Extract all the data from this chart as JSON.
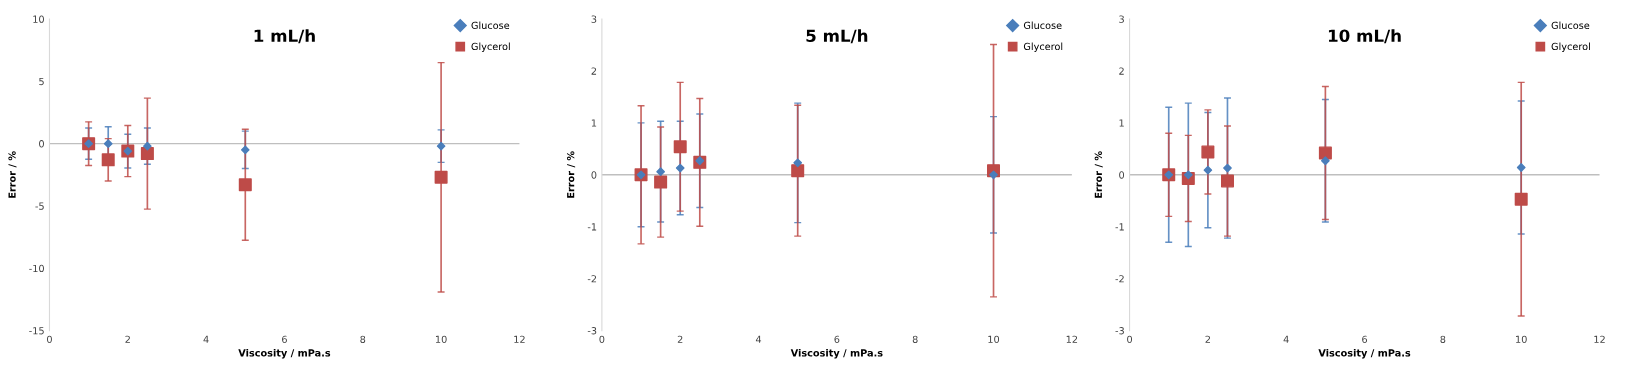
{
  "chart_data": [
    {
      "type": "scatter",
      "title": "1 mL/h",
      "xlabel": "Viscosity / mPa.s",
      "ylabel": "Error / %",
      "xlim": [
        0,
        12
      ],
      "xticks": [
        0,
        2,
        4,
        6,
        8,
        10,
        12
      ],
      "ylim": [
        -15,
        10
      ],
      "yticks": [
        -15,
        -10,
        -5,
        0,
        5,
        10
      ],
      "legend": "top right",
      "grid": false,
      "ref_lines": [
        {
          "axis": "y",
          "value": 0,
          "color": "#bfbfbf"
        }
      ],
      "series": [
        {
          "name": "Glucose",
          "color": "#4a7ebb",
          "marker": "diamond",
          "x": [
            1,
            1.5,
            2,
            2.5,
            5,
            10
          ],
          "values": [
            0,
            0,
            -0.6,
            -0.2,
            -0.5,
            -0.2
          ],
          "errors": [
            1.25,
            1.35,
            1.35,
            1.45,
            1.5,
            1.3
          ]
        },
        {
          "name": "Glycerol",
          "color": "#be4b48",
          "marker": "square",
          "x": [
            1,
            1.5,
            2,
            2.5,
            5,
            10
          ],
          "values": [
            0,
            -1.3,
            -0.6,
            -0.8,
            -3.3,
            -2.7
          ],
          "errors": [
            1.75,
            1.7,
            2.05,
            4.45,
            4.45,
            9.2
          ]
        }
      ]
    },
    {
      "type": "scatter",
      "title": "5 mL/h",
      "xlabel": "Viscosity / mPa.s",
      "ylabel": "Error / %",
      "xlim": [
        0,
        12
      ],
      "xticks": [
        0,
        2,
        4,
        6,
        8,
        10,
        12
      ],
      "ylim": [
        -3,
        3
      ],
      "yticks": [
        -3,
        -2,
        -1,
        0,
        1,
        2,
        3
      ],
      "legend": "top right",
      "grid": false,
      "ref_lines": [
        {
          "axis": "y",
          "value": 0,
          "color": "#bfbfbf"
        }
      ],
      "series": [
        {
          "name": "Glucose",
          "color": "#4a7ebb",
          "marker": "diamond",
          "x": [
            1,
            1.5,
            2,
            2.5,
            5,
            10
          ],
          "values": [
            0,
            0.06,
            0.13,
            0.27,
            0.23,
            0
          ],
          "errors": [
            1.0,
            0.97,
            0.9,
            0.9,
            1.15,
            1.12
          ]
        },
        {
          "name": "Glycerol",
          "color": "#be4b48",
          "marker": "square",
          "x": [
            1,
            1.5,
            2,
            2.5,
            5,
            10
          ],
          "values": [
            0,
            -0.14,
            0.54,
            0.24,
            0.08,
            0.08
          ],
          "errors": [
            1.33,
            1.06,
            1.24,
            1.23,
            1.26,
            2.43
          ]
        }
      ]
    },
    {
      "type": "scatter",
      "title": "10 mL/h",
      "xlabel": "Viscosity / mPa.s",
      "ylabel": "Error / %",
      "xlim": [
        0,
        12
      ],
      "xticks": [
        0,
        2,
        4,
        6,
        8,
        10,
        12
      ],
      "ylim": [
        -3,
        3
      ],
      "yticks": [
        -3,
        -2,
        -1,
        0,
        1,
        2,
        3
      ],
      "legend": "top right",
      "grid": false,
      "ref_lines": [
        {
          "axis": "y",
          "value": 0,
          "color": "#bfbfbf"
        }
      ],
      "series": [
        {
          "name": "Glucose",
          "color": "#4a7ebb",
          "marker": "diamond",
          "x": [
            1,
            1.5,
            2,
            2.5,
            5,
            10
          ],
          "values": [
            0,
            0,
            0.09,
            0.13,
            0.27,
            0.14
          ],
          "errors": [
            1.3,
            1.38,
            1.11,
            1.35,
            1.18,
            1.28
          ]
        },
        {
          "name": "Glycerol",
          "color": "#be4b48",
          "marker": "square",
          "x": [
            1,
            1.5,
            2,
            2.5,
            5,
            10
          ],
          "values": [
            0,
            -0.07,
            0.44,
            -0.12,
            0.42,
            -0.47
          ],
          "errors": [
            0.8,
            0.83,
            0.81,
            1.06,
            1.28,
            2.25
          ]
        }
      ]
    }
  ]
}
